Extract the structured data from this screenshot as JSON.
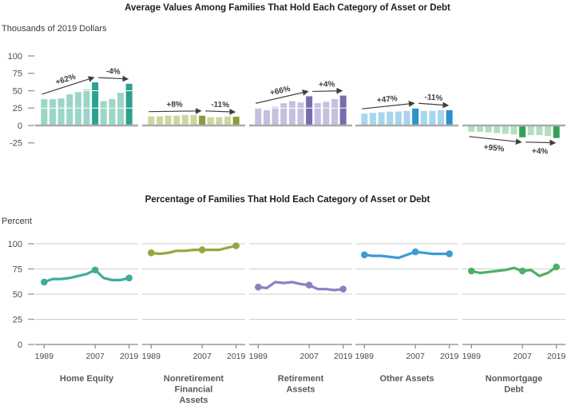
{
  "top_panel": {
    "title": "Average Values Among Families That Hold Each Category of Asset or Debt",
    "unit_label": "Thousands of 2019 Dollars",
    "yticks": [
      100,
      75,
      50,
      25,
      0,
      -25
    ],
    "ylim": [
      -25,
      100
    ]
  },
  "bottom_panel": {
    "title": "Percentage of Families That Hold Each Category of Asset or Debt",
    "unit_label": "Percent",
    "yticks": [
      100,
      75,
      50,
      25,
      0
    ],
    "ylim": [
      0,
      100
    ],
    "xtick_labels": [
      "1989",
      "2007",
      "2019"
    ]
  },
  "chart_data": [
    {
      "name": "Home Equity",
      "label_lines": [
        "Home Equity"
      ],
      "type": "bar+line",
      "years": [
        1989,
        1992,
        1995,
        1998,
        2001,
        2004,
        2007,
        2010,
        2013,
        2016,
        2019
      ],
      "bar_values_thousands": [
        38,
        38,
        39,
        45,
        48,
        52,
        62,
        35,
        38,
        47,
        60
      ],
      "line_values_percent": [
        62,
        65,
        65,
        66,
        68,
        70,
        74,
        66,
        64,
        64,
        66
      ],
      "highlight_years": [
        2007,
        2019
      ],
      "marker_years": [
        1989,
        2007,
        2019
      ],
      "bar_annotations": [
        {
          "text": "+62%",
          "from_year": 1989,
          "to_year": 2007
        },
        {
          "text": "-4%",
          "from_year": 2007,
          "to_year": 2019
        }
      ],
      "colors": {
        "bar": "#9bd6c8",
        "bar_highlight": "#2da18f",
        "line": "#41ab99"
      }
    },
    {
      "name": "Nonretirement Financial Assets",
      "label_lines": [
        "Nonretirement",
        "Financial",
        "Assets"
      ],
      "type": "bar+line",
      "years": [
        1989,
        1992,
        1995,
        1998,
        2001,
        2004,
        2007,
        2010,
        2013,
        2016,
        2019
      ],
      "bar_values_thousands": [
        13,
        13,
        14,
        14,
        15,
        15,
        14,
        12,
        12,
        13,
        12.5
      ],
      "line_values_percent": [
        91,
        90,
        91,
        93,
        93,
        94,
        94,
        94,
        94,
        96,
        98
      ],
      "highlight_years": [
        2007,
        2019
      ],
      "marker_years": [
        1989,
        2007,
        2019
      ],
      "bar_annotations": [
        {
          "text": "+8%",
          "from_year": 1989,
          "to_year": 2007
        },
        {
          "text": "-11%",
          "from_year": 2007,
          "to_year": 2019
        }
      ],
      "colors": {
        "bar": "#cbd7a0",
        "bar_highlight": "#8b9d3a",
        "line": "#95a73f"
      }
    },
    {
      "name": "Retirement Assets",
      "label_lines": [
        "Retirement",
        "Assets"
      ],
      "type": "bar+line",
      "years": [
        1989,
        1992,
        1995,
        1998,
        2001,
        2004,
        2007,
        2010,
        2013,
        2016,
        2019
      ],
      "bar_values_thousands": [
        25,
        22,
        27,
        32,
        35,
        33,
        42,
        32,
        34,
        38,
        43
      ],
      "line_values_percent": [
        57,
        56,
        62,
        61,
        62,
        60,
        59,
        55,
        55,
        54,
        55
      ],
      "highlight_years": [
        2007,
        2019
      ],
      "marker_years": [
        1989,
        2007,
        2019
      ],
      "bar_annotations": [
        {
          "text": "+66%",
          "from_year": 1989,
          "to_year": 2007
        },
        {
          "text": "+4%",
          "from_year": 2007,
          "to_year": 2019
        }
      ],
      "colors": {
        "bar": "#c4c0df",
        "bar_highlight": "#746eb0",
        "line": "#8983bf"
      }
    },
    {
      "name": "Other Assets",
      "label_lines": [
        "Other Assets"
      ],
      "type": "bar+line",
      "years": [
        1989,
        1992,
        1995,
        1998,
        2001,
        2004,
        2007,
        2010,
        2013,
        2016,
        2019
      ],
      "bar_values_thousands": [
        17,
        18,
        19,
        20,
        20,
        21,
        25,
        21,
        21,
        22,
        22
      ],
      "line_values_percent": [
        89,
        88,
        88,
        87,
        86,
        89,
        92,
        91,
        90,
        90,
        90
      ],
      "highlight_years": [
        2007,
        2019
      ],
      "marker_years": [
        1989,
        2007,
        2019
      ],
      "bar_annotations": [
        {
          "text": "+47%",
          "from_year": 1989,
          "to_year": 2007
        },
        {
          "text": "-11%",
          "from_year": 2007,
          "to_year": 2019
        }
      ],
      "colors": {
        "bar": "#a9d6ef",
        "bar_highlight": "#2d91cd",
        "line": "#3b9ad7"
      }
    },
    {
      "name": "Nonmortgage Debt",
      "label_lines": [
        "Nonmortgage",
        "Debt"
      ],
      "type": "bar+line",
      "years": [
        1989,
        1992,
        1995,
        1998,
        2001,
        2004,
        2007,
        2010,
        2013,
        2016,
        2019
      ],
      "bar_values_thousands": [
        -9,
        -9,
        -10,
        -11,
        -12,
        -13,
        -17,
        -14,
        -14,
        -15,
        -18
      ],
      "line_values_percent": [
        73,
        71,
        72,
        73,
        74,
        76,
        73,
        74,
        68,
        71,
        77
      ],
      "highlight_years": [
        2007,
        2019
      ],
      "marker_years": [
        1989,
        2007,
        2019
      ],
      "bar_annotations": [
        {
          "text": "+95%",
          "from_year": 1989,
          "to_year": 2007
        },
        {
          "text": "+4%",
          "from_year": 2007,
          "to_year": 2019
        }
      ],
      "colors": {
        "bar": "#b2dfc0",
        "bar_highlight": "#36a156",
        "line": "#4dae66"
      }
    }
  ]
}
